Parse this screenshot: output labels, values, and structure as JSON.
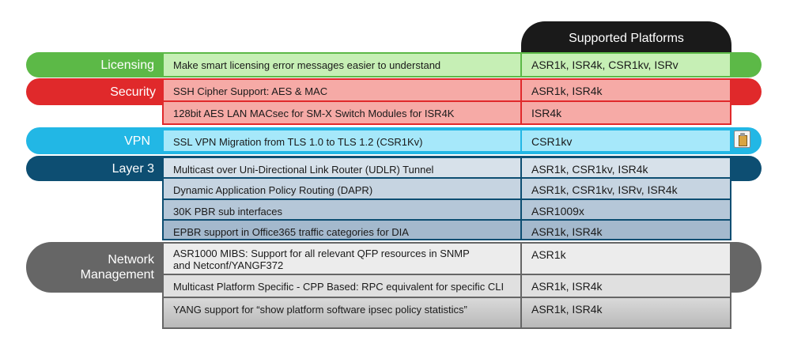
{
  "header": {
    "title": "Supported Platforms"
  },
  "categories": [
    {
      "name": "Licensing",
      "color": "#5cb947",
      "rows": [
        {
          "feature": "Make smart licensing error messages easier to understand",
          "platforms": "ASR1k, ISR4k, CSR1kv, ISRv"
        }
      ]
    },
    {
      "name": "Security",
      "color": "#e0292b",
      "rows": [
        {
          "feature": "SSH Cipher Support: AES & MAC",
          "platforms": "ASR1k, ISR4k"
        },
        {
          "feature": "128bit AES LAN MACsec for SM-X Switch Modules for ISR4K",
          "platforms": "ISR4k"
        }
      ]
    },
    {
      "name": "VPN",
      "color": "#22b7e5",
      "rows": [
        {
          "feature": "SSL VPN Migration from TLS 1.0 to TLS 1.2 (CSR1Kv)",
          "platforms": "CSR1kv"
        }
      ]
    },
    {
      "name": "Layer 3",
      "color": "#0d4e72",
      "rows": [
        {
          "feature": "Multicast over Uni-Directional Link Router (UDLR) Tunnel",
          "platforms": "ASR1k, CSR1kv, ISR4k"
        },
        {
          "feature": "Dynamic Application Policy Routing (DAPR)",
          "platforms": "ASR1k, CSR1kv, ISRv, ISR4k"
        },
        {
          "feature": "30K PBR sub interfaces",
          "platforms": "ASR1009x"
        },
        {
          "feature": "EPBR support in Office365 traffic categories for DIA",
          "platforms": "ASR1k, ISR4k"
        }
      ]
    },
    {
      "name_line1": "Network",
      "name_line2": "Management",
      "color": "#666666",
      "rows": [
        {
          "feature_line1": "ASR1000 MIBS: Support for all relevant QFP resources in SNMP",
          "feature_line2": "and Netconf/YANGF372",
          "platforms": "ASR1k"
        },
        {
          "feature": "Multicast Platform Specific - CPP Based: RPC equivalent for specific CLI",
          "platforms": "ASR1k, ISR4k"
        },
        {
          "feature": "YANG support for “show platform software ipsec policy statistics”",
          "platforms": "ASR1k, ISR4k"
        }
      ]
    }
  ],
  "icons": {
    "clipboard": "clipboard-icon"
  }
}
